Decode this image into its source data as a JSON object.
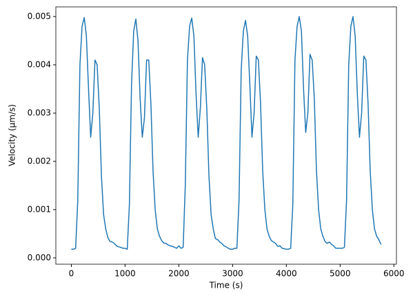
{
  "chart_data": {
    "type": "line",
    "xlabel": "Time (s)",
    "ylabel": "Velocity (µm/s)",
    "xlim": [
      -288,
      6048
    ],
    "ylim": [
      -0.00013,
      0.0052
    ],
    "xticks": [
      0,
      1000,
      2000,
      3000,
      4000,
      5000,
      6000
    ],
    "yticks": [
      {
        "value": 0,
        "label": "0.000"
      },
      0.001,
      0.002,
      0.003,
      0.004,
      0.005
    ],
    "x": [
      0,
      40,
      80,
      120,
      160,
      200,
      240,
      280,
      320,
      360,
      400,
      440,
      480,
      520,
      560,
      600,
      640,
      680,
      720,
      760,
      800,
      840,
      880,
      920,
      960,
      1000,
      1040,
      1080,
      1120,
      1160,
      1200,
      1240,
      1280,
      1320,
      1360,
      1400,
      1440,
      1480,
      1520,
      1560,
      1600,
      1640,
      1680,
      1720,
      1760,
      1800,
      1840,
      1880,
      1920,
      1960,
      2000,
      2040,
      2080,
      2120,
      2160,
      2200,
      2240,
      2280,
      2320,
      2360,
      2400,
      2440,
      2480,
      2520,
      2560,
      2600,
      2640,
      2680,
      2720,
      2760,
      2800,
      2840,
      2880,
      2920,
      2960,
      3000,
      3040,
      3080,
      3120,
      3160,
      3200,
      3240,
      3280,
      3320,
      3360,
      3400,
      3440,
      3480,
      3520,
      3560,
      3600,
      3640,
      3680,
      3720,
      3760,
      3800,
      3840,
      3880,
      3920,
      3960,
      4000,
      4040,
      4080,
      4120,
      4160,
      4200,
      4240,
      4280,
      4320,
      4360,
      4400,
      4440,
      4480,
      4520,
      4560,
      4600,
      4640,
      4680,
      4720,
      4760,
      4800,
      4840,
      4880,
      4920,
      4960,
      5000,
      5040,
      5080,
      5120,
      5160,
      5200,
      5240,
      5280,
      5320,
      5360,
      5400,
      5440,
      5480,
      5520,
      5560,
      5600,
      5640,
      5680,
      5720,
      5760
    ],
    "series": [
      {
        "name": "Velocity",
        "color": "#1f77b4",
        "values": [
          0.00018,
          0.00018,
          0.0002,
          0.0012,
          0.004,
          0.0048,
          0.00498,
          0.0046,
          0.0035,
          0.0025,
          0.003,
          0.0041,
          0.004,
          0.0031,
          0.0017,
          0.0009,
          0.0006,
          0.00042,
          0.00034,
          0.00033,
          0.0003,
          0.00025,
          0.00023,
          0.00022,
          0.0002,
          0.0002,
          0.00018,
          0.0011,
          0.0036,
          0.0047,
          0.00495,
          0.0045,
          0.0033,
          0.0025,
          0.0029,
          0.0041,
          0.0041,
          0.0032,
          0.0018,
          0.001,
          0.0006,
          0.00045,
          0.00036,
          0.00031,
          0.0003,
          0.00027,
          0.00025,
          0.00024,
          0.00022,
          0.0002,
          0.00025,
          0.0002,
          0.00022,
          0.0015,
          0.0041,
          0.0048,
          0.00497,
          0.0046,
          0.0034,
          0.0025,
          0.0031,
          0.00415,
          0.004,
          0.0031,
          0.0017,
          0.0009,
          0.0006,
          0.0004,
          0.00038,
          0.00033,
          0.0003,
          0.00025,
          0.00023,
          0.0002,
          0.00018,
          0.00018,
          0.0002,
          0.0002,
          0.0012,
          0.0039,
          0.0047,
          0.00492,
          0.0046,
          0.0036,
          0.0025,
          0.003,
          0.00418,
          0.0041,
          0.0032,
          0.0018,
          0.001,
          0.0006,
          0.00045,
          0.00036,
          0.00033,
          0.0003,
          0.00024,
          0.00025,
          0.0002,
          0.00019,
          0.00018,
          0.00018,
          0.0002,
          0.0011,
          0.0041,
          0.0048,
          0.005,
          0.0047,
          0.0035,
          0.0026,
          0.003,
          0.00422,
          0.0041,
          0.0033,
          0.0018,
          0.001,
          0.0006,
          0.00045,
          0.00034,
          0.0003,
          0.00033,
          0.00028,
          0.00025,
          0.0002,
          0.0002,
          0.0002,
          0.0002,
          0.00022,
          0.0012,
          0.004,
          0.0048,
          0.005,
          0.0046,
          0.0034,
          0.0025,
          0.003,
          0.00418,
          0.0041,
          0.0032,
          0.0018,
          0.001,
          0.0006,
          0.00045,
          0.00038,
          0.00028
        ]
      }
    ]
  }
}
